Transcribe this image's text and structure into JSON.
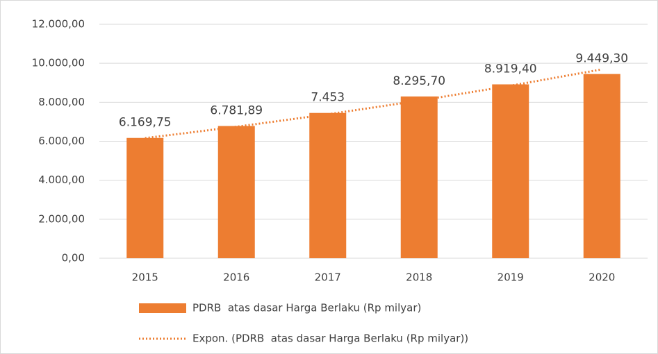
{
  "chart_data": {
    "type": "bar",
    "categories": [
      "2015",
      "2016",
      "2017",
      "2018",
      "2019",
      "2020"
    ],
    "series": [
      {
        "name": "PDRB  atas dasar Harga Berlaku (Rp milyar)",
        "color": "#ed7d31",
        "values": [
          6169.75,
          6781.89,
          7453,
          8295.7,
          8919.4,
          9449.3
        ],
        "value_labels": [
          "6.169,75",
          "6.781,89",
          "7.453",
          "8.295,70",
          "8.919,40",
          "9.449,30"
        ]
      },
      {
        "name": "Expon. (PDRB  atas dasar Harga Berlaku (Rp milyar))",
        "color": "#ed7d31",
        "type": "line",
        "style": "dotted",
        "values": [
          6160,
          6744,
          7383,
          8083,
          8849,
          9688
        ]
      }
    ],
    "ylim": [
      0,
      12000
    ],
    "yticks": [
      {
        "value": 0,
        "label": "0,00"
      },
      {
        "value": 2000,
        "label": "2.000,00"
      },
      {
        "value": 4000,
        "label": "4.000,00"
      },
      {
        "value": 6000,
        "label": "6.000,00"
      },
      {
        "value": 8000,
        "label": "8.000,00"
      },
      {
        "value": 10000,
        "label": "10.000,00"
      },
      {
        "value": 12000,
        "label": "12.000,00"
      }
    ],
    "grid": true,
    "legend": "bottom"
  }
}
